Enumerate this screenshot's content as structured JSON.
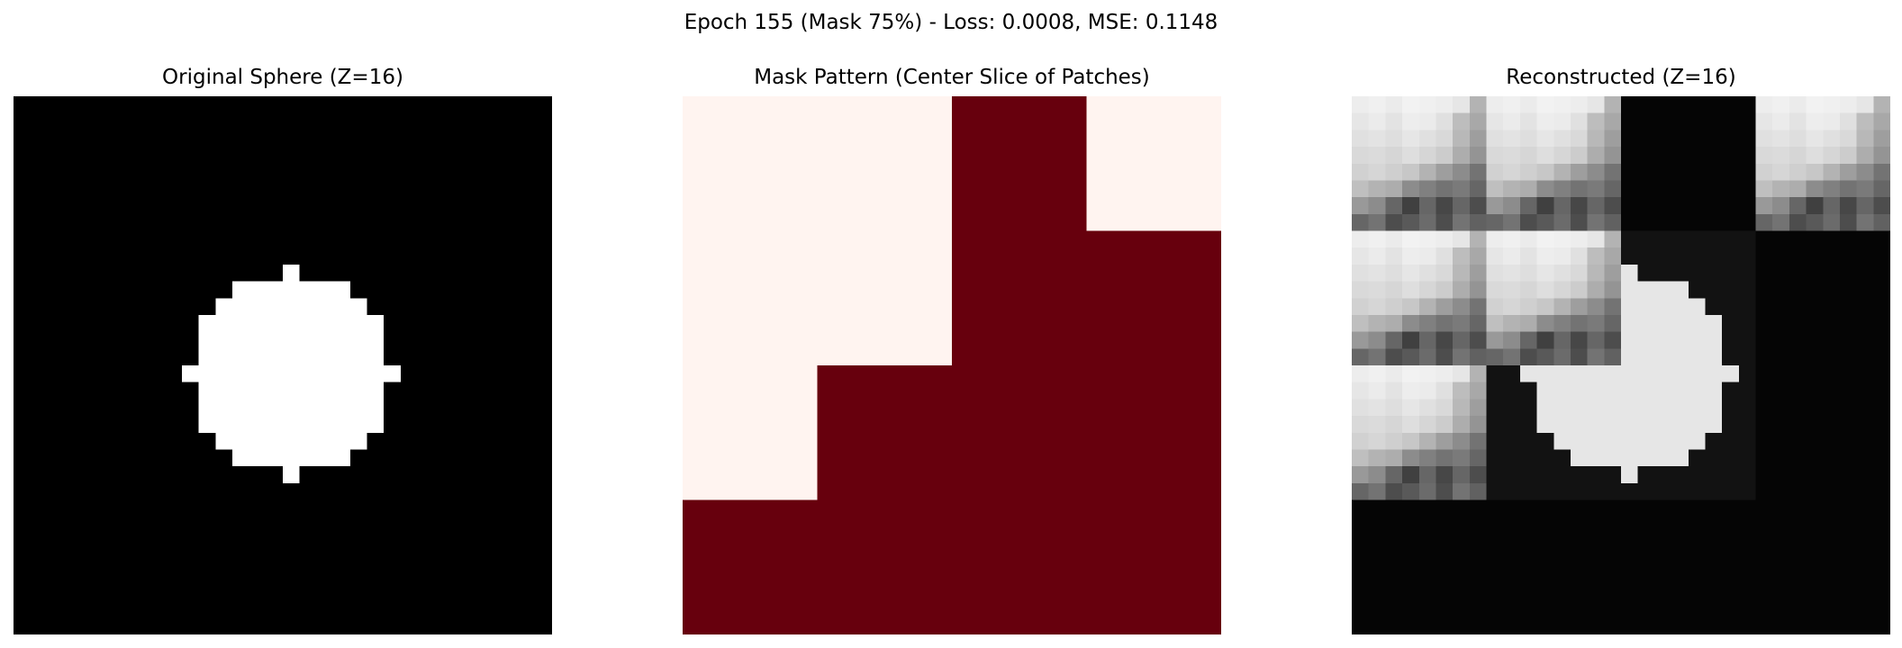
{
  "figure": {
    "suptitle": "Epoch 155 (Mask 75%) - Loss: 0.0008, MSE: 0.1148"
  },
  "chart_data": [
    {
      "type": "heatmap",
      "title": "Original Sphere (Z=16)",
      "colormap": "gray",
      "vmin": 0,
      "vmax": 1,
      "grid_size": 32,
      "axes_visible": false,
      "rows": [
        "00000000000000000000000000000000",
        "00000000000000000000000000000000",
        "00000000000000000000000000000000",
        "00000000000000000000000000000000",
        "00000000000000000000000000000000",
        "00000000000000000000000000000000",
        "00000000000000000000000000000000",
        "00000000000000000000000000000000",
        "00000000000000000000000000000000",
        "00000000000000000000000000000000",
        "00000000000000001000000000000000",
        "00000000000001111111000000000000",
        "00000000000011111111100000000000",
        "00000000000111111111110000000000",
        "00000000000111111111110000000000",
        "00000000000111111111110000000000",
        "00000000001111111111111000000000",
        "00000000000111111111110000000000",
        "00000000000111111111110000000000",
        "00000000000111111111110000000000",
        "00000000000011111111100000000000",
        "00000000000001111111000000000000",
        "00000000000000001000000000000000",
        "00000000000000000000000000000000",
        "00000000000000000000000000000000",
        "00000000000000000000000000000000",
        "00000000000000000000000000000000",
        "00000000000000000000000000000000",
        "00000000000000000000000000000000",
        "00000000000000000000000000000000",
        "00000000000000000000000000000000",
        "00000000000000000000000000000000"
      ]
    },
    {
      "type": "heatmap",
      "title": "Mask Pattern (Center Slice of Patches)",
      "colormap": "Reds",
      "colors": {
        "0": "#fff4f0",
        "1": "#67000d"
      },
      "grid_size": 4,
      "axes_visible": false,
      "rows": [
        [
          0,
          0,
          1,
          0
        ],
        [
          0,
          0,
          1,
          1
        ],
        [
          0,
          1,
          1,
          1
        ],
        [
          1,
          1,
          1,
          1
        ]
      ]
    },
    {
      "type": "heatmap",
      "title": "Reconstructed (Z=16)",
      "colormap": "gray",
      "vmin": 0,
      "vmax": 1,
      "grid_size": 32,
      "patch_size": 8,
      "axes_visible": false,
      "patch_types": [
        [
          "A",
          "A",
          "D",
          "A"
        ],
        [
          "A",
          "A",
          "S",
          "D"
        ],
        [
          "A",
          "S",
          "S",
          "D"
        ],
        [
          "D",
          "D",
          "D",
          "D"
        ]
      ],
      "patch_A": [
        [
          0.93,
          0.94,
          0.92,
          0.95,
          0.94,
          0.93,
          0.9,
          0.7
        ],
        [
          0.9,
          0.92,
          0.89,
          0.93,
          0.92,
          0.88,
          0.74,
          0.66
        ],
        [
          0.88,
          0.89,
          0.87,
          0.9,
          0.88,
          0.85,
          0.72,
          0.62
        ],
        [
          0.85,
          0.86,
          0.84,
          0.87,
          0.84,
          0.8,
          0.68,
          0.58
        ],
        [
          0.82,
          0.84,
          0.81,
          0.78,
          0.7,
          0.62,
          0.55,
          0.45
        ],
        [
          0.75,
          0.7,
          0.68,
          0.55,
          0.5,
          0.45,
          0.48,
          0.4
        ],
        [
          0.6,
          0.55,
          0.4,
          0.25,
          0.4,
          0.28,
          0.4,
          0.3
        ],
        [
          0.4,
          0.45,
          0.3,
          0.35,
          0.42,
          0.3,
          0.45,
          0.38
        ]
      ],
      "dark_value": 0.02,
      "sphere_value": 0.9,
      "sphere_dark_background": 0.07
    }
  ]
}
